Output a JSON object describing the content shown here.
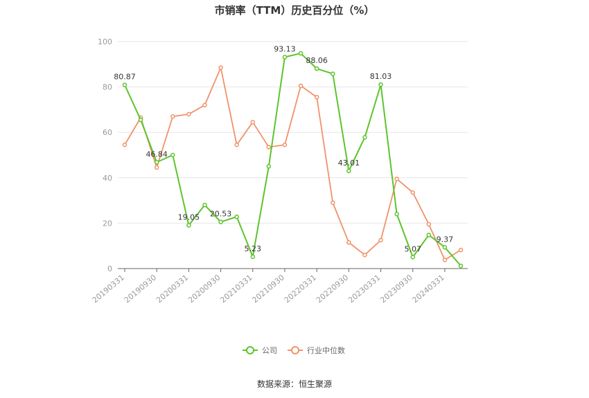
{
  "chart_data": {
    "type": "line",
    "title": "市销率（TTM）历史百分位（%）",
    "x": [
      "20190331",
      "20190630",
      "20190930",
      "20191231",
      "20200331",
      "20200630",
      "20200930",
      "20201231",
      "20210331",
      "20210630",
      "20210930",
      "20211231",
      "20220331",
      "20220630",
      "20220930",
      "20221231",
      "20230331",
      "20230630",
      "20230930",
      "20231231",
      "20240331",
      "20240630"
    ],
    "xticks": [
      "20190331",
      "20190930",
      "20200331",
      "20200930",
      "20210331",
      "20210930",
      "20220331",
      "20220930",
      "20230331",
      "20230930",
      "20240331"
    ],
    "ylim": [
      0,
      100
    ],
    "yticks": [
      0,
      20,
      40,
      60,
      80,
      100
    ],
    "grid": true,
    "legend_position": "bottom",
    "series": [
      {
        "name": "公司",
        "color": "#5cc42b",
        "values": [
          80.87,
          65.5,
          46.84,
          50.0,
          19.05,
          28.0,
          20.53,
          22.8,
          5.23,
          45.0,
          93.13,
          94.8,
          88.06,
          85.8,
          43.01,
          57.8,
          81.03,
          24.0,
          5.07,
          14.8,
          9.37,
          1.2
        ],
        "labels": {
          "0": "80.87",
          "2": "46.84",
          "4": "19.05",
          "6": "20.53",
          "8": "5.23",
          "10": "93.13",
          "12": "88.06",
          "14": "43.01",
          "16": "81.03",
          "18": "5.07",
          "20": "9.37"
        }
      },
      {
        "name": "行业中位数",
        "color": "#f0926a",
        "values": [
          54.5,
          66.5,
          44.5,
          67.0,
          68.0,
          72.0,
          88.5,
          54.5,
          64.5,
          53.5,
          54.5,
          80.5,
          75.5,
          29.0,
          11.5,
          6.0,
          12.5,
          39.5,
          33.5,
          19.5,
          3.8,
          8.2
        ],
        "labels": {}
      }
    ]
  },
  "footer": {
    "source": "数据来源：恒生聚源"
  }
}
